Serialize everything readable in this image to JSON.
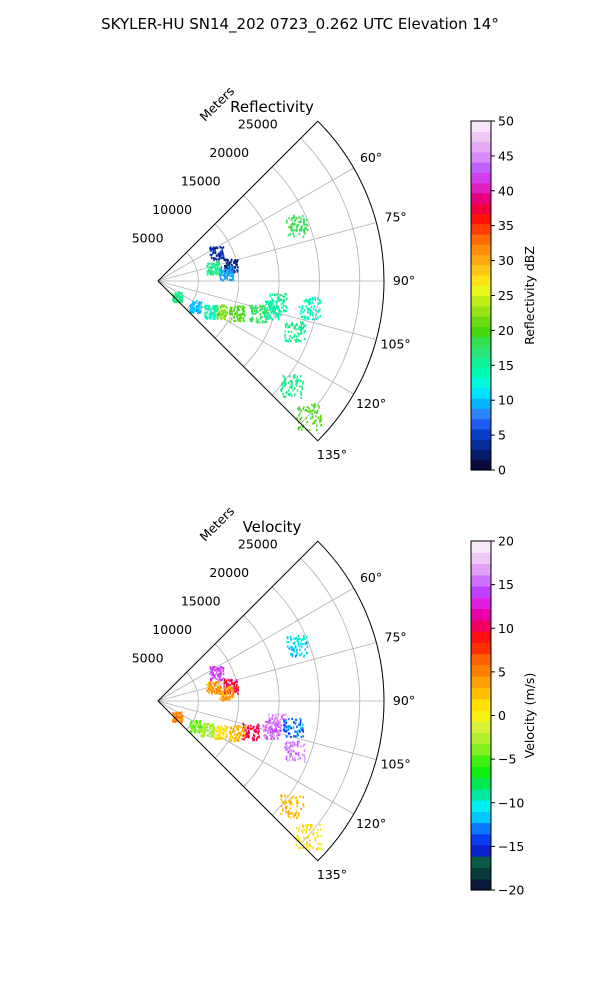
{
  "figure_title": "SKYLER-HU  SN14_202  0723_0.262 UTC Elevation 14°",
  "chart_data": [
    {
      "type": "polar-ppi",
      "title": "Reflectivity",
      "range_label": "Meters",
      "range_ticks": [
        5000,
        10000,
        15000,
        20000,
        25000
      ],
      "range_tick_labels": [
        "5000",
        "10000",
        "15000",
        "20000",
        "25000"
      ],
      "rlim": [
        0,
        28000
      ],
      "azimuth_range_deg": [
        45,
        135
      ],
      "azimuth_ticks": [
        60,
        75,
        90,
        105,
        120,
        135
      ],
      "azimuth_tick_labels": [
        "60°",
        "75°",
        "90°",
        "105°",
        "120°",
        "135°"
      ],
      "grid": true,
      "colorbar": {
        "label": "Reflectivity dBZ",
        "min": 0,
        "max": 50,
        "ticks": [
          0,
          5,
          10,
          15,
          20,
          25,
          30,
          35,
          40,
          45,
          50
        ],
        "tick_labels": [
          "0",
          "5",
          "10",
          "15",
          "20",
          "25",
          "30",
          "35",
          "40",
          "45",
          "50"
        ],
        "colors": [
          "#0a0a3c",
          "#061a6a",
          "#062a96",
          "#0a3dc8",
          "#1f5af0",
          "#2d84f8",
          "#00b4ff",
          "#00e0ff",
          "#00f8dc",
          "#00fab4",
          "#10f296",
          "#2ae678",
          "#34e050",
          "#48d60e",
          "#6adc10",
          "#98e414",
          "#bef018",
          "#e8f81c",
          "#ffe21a",
          "#ffc814",
          "#ffaa10",
          "#ff8e0c",
          "#ff6a06",
          "#ff3c04",
          "#ff1208",
          "#f00040",
          "#e80080",
          "#e020c0",
          "#d03cf0",
          "#c060ff",
          "#d88af8",
          "#e4a8f4",
          "#f0c8f6",
          "#f8e4fa"
        ]
      },
      "echoes": [
        {
          "az": 68,
          "r": 18500,
          "value": 18
        },
        {
          "az": 64,
          "r": 8000,
          "value": 4
        },
        {
          "az": 76,
          "r": 7000,
          "value": 16
        },
        {
          "az": 78,
          "r": 9200,
          "value": 3
        },
        {
          "az": 83,
          "r": 8500,
          "value": 9
        },
        {
          "az": 100,
          "r": 15000,
          "value": 16
        },
        {
          "az": 104,
          "r": 14500,
          "value": 14
        },
        {
          "az": 108,
          "r": 13000,
          "value": 18
        },
        {
          "az": 112,
          "r": 10500,
          "value": 20
        },
        {
          "az": 116,
          "r": 8500,
          "value": 22
        },
        {
          "az": 120,
          "r": 7500,
          "value": 14
        },
        {
          "az": 124,
          "r": 5500,
          "value": 10
        },
        {
          "az": 129,
          "r": 3000,
          "value": 16
        },
        {
          "az": 100,
          "r": 19000,
          "value": 14
        },
        {
          "az": 110,
          "r": 18000,
          "value": 16
        },
        {
          "az": 128,
          "r": 21000,
          "value": 16
        },
        {
          "az": 132,
          "r": 25000,
          "value": 20
        }
      ]
    },
    {
      "type": "polar-ppi",
      "title": "Velocity",
      "range_label": "Meters",
      "range_ticks": [
        5000,
        10000,
        15000,
        20000,
        25000
      ],
      "range_tick_labels": [
        "5000",
        "10000",
        "15000",
        "20000",
        "25000"
      ],
      "rlim": [
        0,
        28000
      ],
      "azimuth_range_deg": [
        45,
        135
      ],
      "azimuth_ticks": [
        60,
        75,
        90,
        105,
        120,
        135
      ],
      "azimuth_tick_labels": [
        "60°",
        "75°",
        "90°",
        "105°",
        "120°",
        "135°"
      ],
      "grid": true,
      "colorbar": {
        "label": "Velocity (m/s)",
        "min": -20,
        "max": 20,
        "ticks": [
          -20,
          -15,
          -10,
          -5,
          0,
          5,
          10,
          15,
          20
        ],
        "tick_labels": [
          "−20",
          "−15",
          "−10",
          "−5",
          "0",
          "5",
          "10",
          "15",
          "20"
        ],
        "colors": [
          "#0a1a3c",
          "#0a3a3a",
          "#0a5a46",
          "#0a20c8",
          "#0a3cf0",
          "#0a78ff",
          "#00c8ff",
          "#00f0f0",
          "#00e8a0",
          "#00e850",
          "#10f010",
          "#40f010",
          "#80f020",
          "#b0f030",
          "#d8f038",
          "#f8f010",
          "#ffe000",
          "#ffc000",
          "#ffa000",
          "#ff8000",
          "#ff6000",
          "#ff3000",
          "#ff1010",
          "#f00060",
          "#e800a8",
          "#e020e0",
          "#c040ff",
          "#d070ff",
          "#e0a0f8",
          "#f0c8f8",
          "#f8e8fa"
        ]
      },
      "echoes": [
        {
          "az": 68,
          "r": 18500,
          "value": -11
        },
        {
          "az": 64,
          "r": 8000,
          "value": 14
        },
        {
          "az": 76,
          "r": 7000,
          "value": 4
        },
        {
          "az": 78,
          "r": 9200,
          "value": 10
        },
        {
          "az": 83,
          "r": 8500,
          "value": 4
        },
        {
          "az": 100,
          "r": 15000,
          "value": 16
        },
        {
          "az": 104,
          "r": 14500,
          "value": 15
        },
        {
          "az": 101,
          "r": 17000,
          "value": -13
        },
        {
          "az": 108,
          "r": 12000,
          "value": 10
        },
        {
          "az": 112,
          "r": 10500,
          "value": 3
        },
        {
          "az": 116,
          "r": 8500,
          "value": 1
        },
        {
          "az": 120,
          "r": 7000,
          "value": -3
        },
        {
          "az": 124,
          "r": 5500,
          "value": -4
        },
        {
          "az": 129,
          "r": 3000,
          "value": 5
        },
        {
          "az": 110,
          "r": 18000,
          "value": 16
        },
        {
          "az": 128,
          "r": 21000,
          "value": 3
        },
        {
          "az": 132,
          "r": 25000,
          "value": 1
        }
      ]
    }
  ]
}
